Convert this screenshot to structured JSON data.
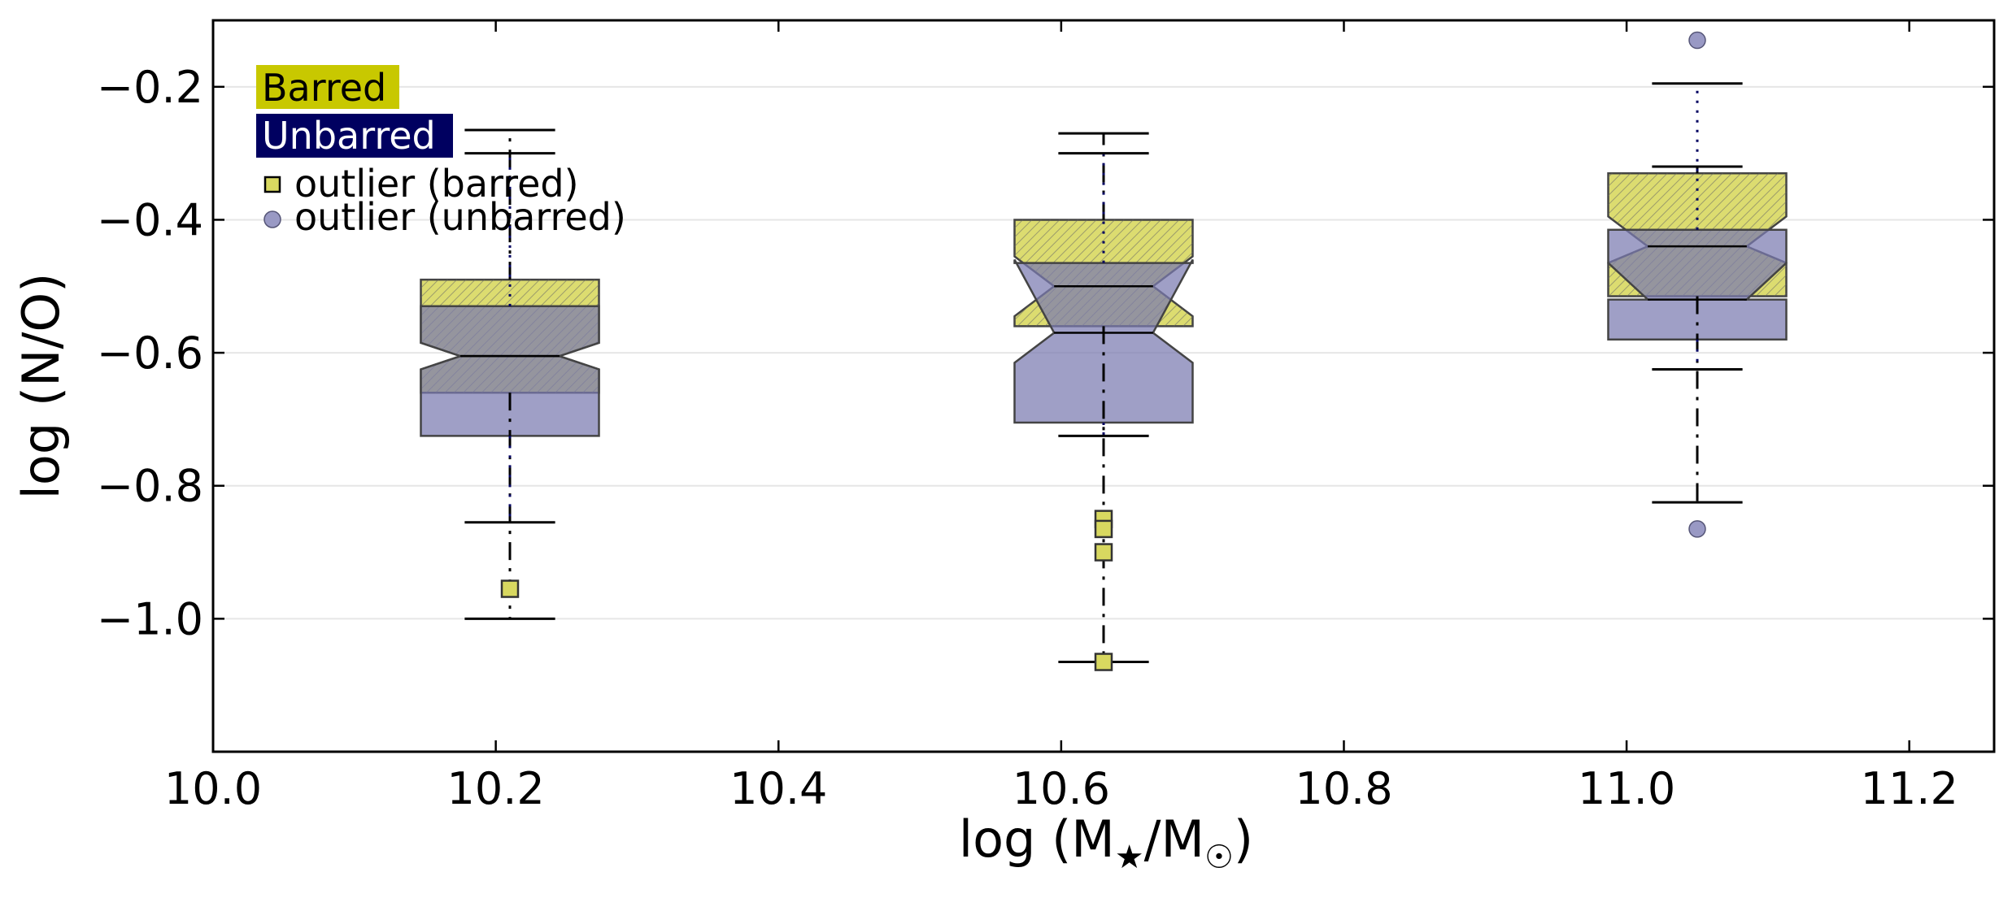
{
  "chart_data": {
    "type": "boxplot",
    "xlabel": "log (M★/M☉)",
    "ylabel": "log (N/O)",
    "xlim": [
      10.0,
      11.26
    ],
    "ylim": [
      -1.2,
      -0.1
    ],
    "xticks": [
      10.0,
      10.2,
      10.4,
      10.6,
      10.8,
      11.0,
      11.2
    ],
    "xtick_labels": [
      "10.0",
      "10.2",
      "10.4",
      "10.6",
      "10.8",
      "11.0",
      "11.2"
    ],
    "yticks": [
      -0.2,
      -0.4,
      -0.6,
      -0.8,
      -1.0
    ],
    "ytick_labels": [
      "−0.2",
      "−0.4",
      "−0.6",
      "−0.8",
      "−1.0"
    ],
    "grid": "horizontal",
    "legend_position": "top-left",
    "legend": {
      "barred": "Barred",
      "unbarred": "Unbarred",
      "outlier_barred": "outlier (barred)",
      "outlier_unbarred": "outlier (unbarred)"
    },
    "colors": {
      "barred": "#c8c800",
      "barred_fill": "#d8d860",
      "unbarred": "#000060",
      "unbarred_fill": "#7a7ab0",
      "overlap": "#5a5a6a",
      "grid": "#e6e6e6"
    },
    "categories": [
      10.21,
      10.63,
      11.05
    ],
    "series": [
      {
        "name": "Barred",
        "boxes": [
          {
            "x": 10.21,
            "whisker_low": -1.0,
            "q1": -0.66,
            "notch_low": -0.625,
            "median": -0.605,
            "notch_high": -0.585,
            "q3": -0.49,
            "whisker_high": -0.265
          },
          {
            "x": 10.63,
            "whisker_low": -1.065,
            "q1": -0.56,
            "notch_low": -0.545,
            "median": -0.5,
            "notch_high": -0.455,
            "q3": -0.4,
            "whisker_high": -0.27
          },
          {
            "x": 11.05,
            "whisker_low": -0.825,
            "q1": -0.515,
            "notch_low": -0.465,
            "median": -0.44,
            "notch_high": -0.395,
            "q3": -0.33,
            "whisker_high": -0.32
          }
        ],
        "outliers": [
          {
            "x": 10.21,
            "y": -0.955
          },
          {
            "x": 10.63,
            "y": -0.85
          },
          {
            "x": 10.63,
            "y": -0.865
          },
          {
            "x": 10.63,
            "y": -0.9
          },
          {
            "x": 10.63,
            "y": -1.065
          }
        ]
      },
      {
        "name": "Unbarred",
        "boxes": [
          {
            "x": 10.21,
            "whisker_low": -0.855,
            "q1": -0.725,
            "notch_low": -0.625,
            "median": -0.605,
            "notch_high": -0.585,
            "q3": -0.53,
            "whisker_high": -0.3
          },
          {
            "x": 10.63,
            "whisker_low": -0.725,
            "q1": -0.705,
            "notch_low": -0.615,
            "median": -0.57,
            "notch_high": -0.46,
            "q3": -0.465,
            "whisker_high": -0.3
          },
          {
            "x": 11.05,
            "whisker_low": -0.625,
            "q1": -0.58,
            "notch_low": -0.52,
            "median": -0.52,
            "notch_high": -0.465,
            "q3": -0.415,
            "whisker_high": -0.195
          }
        ],
        "outliers": [
          {
            "x": 11.05,
            "y": -0.13
          },
          {
            "x": 11.05,
            "y": -0.865
          }
        ]
      }
    ]
  }
}
